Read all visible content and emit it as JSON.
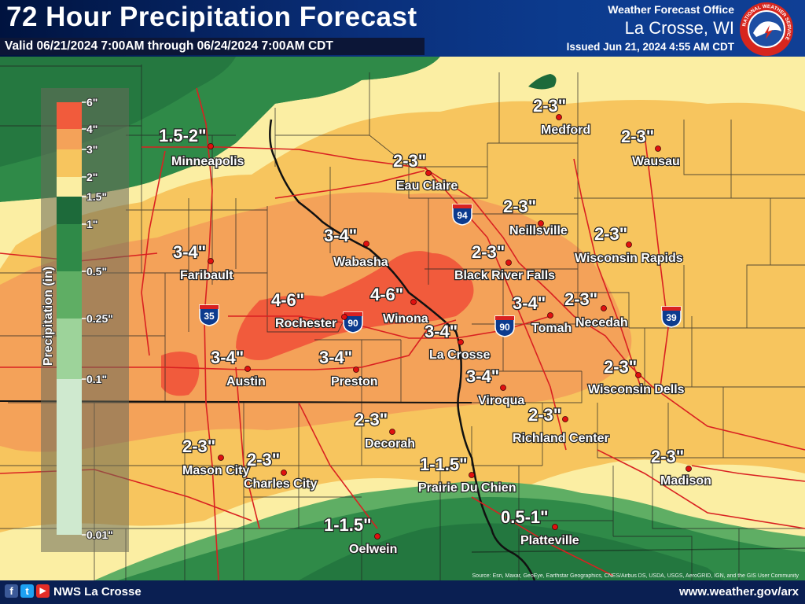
{
  "header": {
    "title": "72 Hour Precipitation Forecast",
    "valid": "Valid 06/21/2024 7:00AM through 06/24/2024 7:00AM CDT",
    "office_label": "Weather Forecast Office",
    "office_city": "La Crosse, WI",
    "issued": "Issued Jun 21, 2024 4:55 AM CDT"
  },
  "logo": {
    "ring_text": "NATIONAL WEATHER SERVICE"
  },
  "legend": {
    "title": "Precipitation (in)",
    "ticks": [
      "6\"",
      "4\"",
      "3\"",
      "2\"",
      "1.5\"",
      "1\"",
      "0.5\"",
      "0.25\"",
      "0.1\"",
      "0.01\""
    ],
    "colors": [
      "#f15b3c",
      "#f4a259",
      "#f7c55e",
      "#fbeea3",
      "#1d6a3a",
      "#2f8a48",
      "#5fae64",
      "#9dd39a",
      "#cfe9cf"
    ]
  },
  "cities": [
    {
      "name": "Minneapolis",
      "range": "1.5-2\""
    },
    {
      "name": "Eau Claire",
      "range": "2-3\""
    },
    {
      "name": "Medford",
      "range": "2-3\""
    },
    {
      "name": "Wausau",
      "range": "2-3\""
    },
    {
      "name": "Neillsville",
      "range": "2-3\""
    },
    {
      "name": "Wisconsin Rapids",
      "range": "2-3\""
    },
    {
      "name": "Wabasha",
      "range": "3-4\""
    },
    {
      "name": "Faribault",
      "range": "3-4\""
    },
    {
      "name": "Black River Falls",
      "range": "2-3\""
    },
    {
      "name": "Rochester",
      "range": "4-6\""
    },
    {
      "name": "Winona",
      "range": "4-6\""
    },
    {
      "name": "Tomah",
      "range": "3-4\""
    },
    {
      "name": "Necedah",
      "range": "2-3\""
    },
    {
      "name": "La Crosse",
      "range": "3-4\""
    },
    {
      "name": "Austin",
      "range": "3-4\""
    },
    {
      "name": "Preston",
      "range": "3-4\""
    },
    {
      "name": "Viroqua",
      "range": "3-4\""
    },
    {
      "name": "Wisconsin Dells",
      "range": "2-3\""
    },
    {
      "name": "Decorah",
      "range": "2-3\""
    },
    {
      "name": "Richland Center",
      "range": "2-3\""
    },
    {
      "name": "Mason City",
      "range": "2-3\""
    },
    {
      "name": "Charles City",
      "range": "2-3\""
    },
    {
      "name": "Prairie Du Chien",
      "range": "1-1.5\""
    },
    {
      "name": "Madison",
      "range": "2-3\""
    },
    {
      "name": "Oelwein",
      "range": "1-1.5\""
    },
    {
      "name": "Platteville",
      "range": "0.5-1\""
    }
  ],
  "interstates": [
    "94",
    "90",
    "90",
    "35",
    "39"
  ],
  "footer": {
    "social": [
      "f",
      "t",
      "▶"
    ],
    "office": "NWS La Crosse",
    "website": "www.weather.gov/arx",
    "credits": "Source: Esri, Maxar, GeoEye, Earthstar Geographics, CNES/Airbus DS, USDA, USGS, AeroGRID, IGN, and the GIS User Community"
  }
}
